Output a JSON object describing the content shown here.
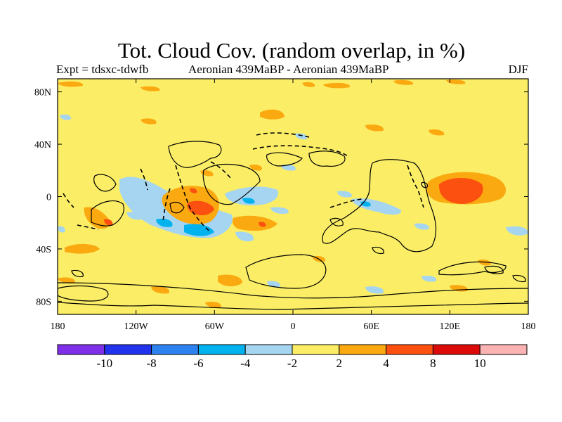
{
  "chart_data": {
    "type": "heatmap",
    "title": "Tot. Cloud Cov. (random overlap, in %)",
    "subtitle_left": "Expt = tdsxc-tdwfb",
    "subtitle_center": "Aeronian 439MaBP - Aeronian 439MaBP",
    "subtitle_right": "DJF",
    "x_ticks": [
      "180",
      "120W",
      "60W",
      "0",
      "60E",
      "120E",
      "180"
    ],
    "x_tick_values": [
      -180,
      -120,
      -60,
      0,
      60,
      120,
      180
    ],
    "y_ticks": [
      "80N",
      "40N",
      "0",
      "40S",
      "80S"
    ],
    "y_tick_values": [
      80,
      40,
      0,
      -40,
      -80
    ],
    "xlim": [
      -180,
      180
    ],
    "ylim": [
      -90,
      90
    ],
    "colorbar": {
      "labels": [
        "-10",
        "-8",
        "-6",
        "-4",
        "-2",
        "2",
        "4",
        "8",
        "10"
      ],
      "colors": [
        "#7f2fe8",
        "#2233ee",
        "#2e82f0",
        "#00b2ee",
        "#a5d5f0",
        "#fbee66",
        "#fba910",
        "#fb5010",
        "#dd0a0a",
        "#fbb2b2"
      ]
    }
  }
}
